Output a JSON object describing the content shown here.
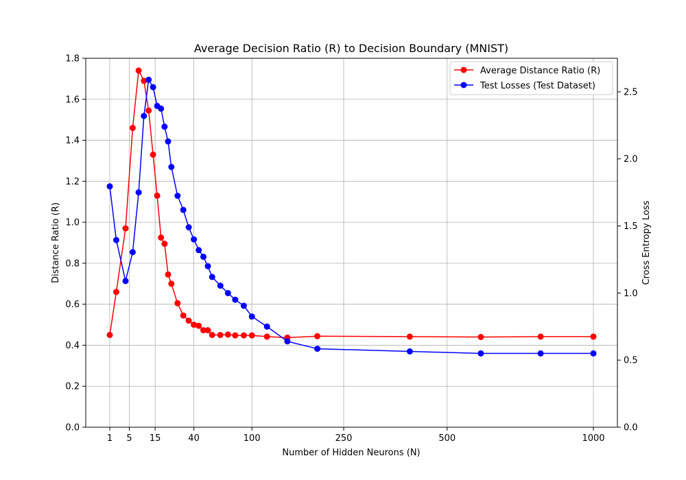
{
  "chart_data": {
    "type": "line",
    "title": "Average Decision Ratio (R) to Decision Boundary (MNIST)",
    "xlabel": "Number of Hidden Neurons (N)",
    "ylabel": "Distance Ratio (R)",
    "y2label": "Cross Entropy Loss",
    "x_scale": "sqrt",
    "xlim": [
      0,
      1000
    ],
    "ylim": [
      0,
      1.8
    ],
    "y2lim": [
      0,
      2.75
    ],
    "x_ticks": [
      1,
      5,
      15,
      40,
      100,
      250,
      500,
      1000
    ],
    "x_tick_labels": [
      "1",
      "5",
      "15",
      "40",
      "100",
      "250",
      "500",
      "1000"
    ],
    "y_ticks": [
      0.0,
      0.2,
      0.4,
      0.6,
      0.8,
      1.0,
      1.2,
      1.4,
      1.6,
      1.8
    ],
    "y_tick_labels": [
      "0.0",
      "0.2",
      "0.4",
      "0.6",
      "0.8",
      "1.0",
      "1.2",
      "1.4",
      "1.6",
      "1.8"
    ],
    "y2_ticks": [
      0.0,
      0.5,
      1.0,
      1.5,
      2.0,
      2.5
    ],
    "y2_tick_labels": [
      "0.0",
      "0.5",
      "1.0",
      "1.5",
      "2.0",
      "2.5"
    ],
    "grid": true,
    "legend_position": "top-right",
    "series": [
      {
        "name": "Average Distance Ratio (R)",
        "axis": "left",
        "color": "#ff0000",
        "x": [
          1,
          2,
          4,
          6,
          8,
          10,
          12,
          14,
          16,
          18,
          20,
          22,
          24,
          28,
          32,
          36,
          40,
          44,
          48,
          52,
          56,
          64,
          72,
          80,
          90,
          100,
          120,
          150,
          200,
          400,
          600,
          800,
          1000
        ],
        "y": [
          0.45,
          0.66,
          0.97,
          1.46,
          1.74,
          1.69,
          1.545,
          1.33,
          1.13,
          0.925,
          0.895,
          0.745,
          0.7,
          0.605,
          0.545,
          0.52,
          0.5,
          0.495,
          0.473,
          0.473,
          0.45,
          0.45,
          0.452,
          0.448,
          0.448,
          0.448,
          0.442,
          0.437,
          0.444,
          0.442,
          0.44,
          0.442,
          0.442
        ]
      },
      {
        "name": "Test Losses (Test Dataset)",
        "axis": "right",
        "color": "#0000ff",
        "x": [
          1,
          2,
          4,
          6,
          8,
          10,
          12,
          14,
          16,
          18,
          20,
          22,
          24,
          28,
          32,
          36,
          40,
          44,
          48,
          52,
          56,
          64,
          72,
          80,
          90,
          100,
          120,
          150,
          200,
          400,
          600,
          800,
          1000
        ],
        "y": [
          1.795,
          1.395,
          1.09,
          1.305,
          1.75,
          2.32,
          2.59,
          2.535,
          2.395,
          2.375,
          2.24,
          2.13,
          1.94,
          1.725,
          1.62,
          1.49,
          1.4,
          1.32,
          1.27,
          1.2,
          1.12,
          1.055,
          1.0,
          0.95,
          0.905,
          0.825,
          0.75,
          0.64,
          0.585,
          0.565,
          0.55,
          0.55,
          0.55
        ]
      }
    ]
  }
}
